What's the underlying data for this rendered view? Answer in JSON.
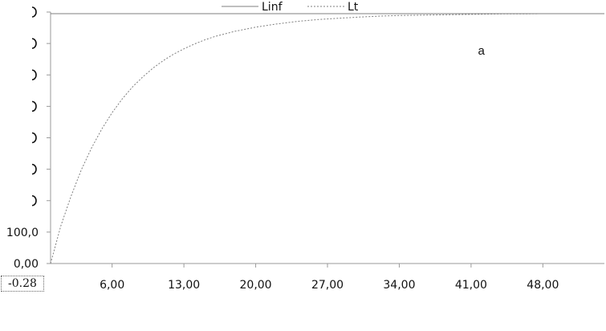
{
  "chart_data": {
    "type": "line",
    "title": "",
    "xlabel": "",
    "ylabel": "",
    "xlim": [
      0,
      54
    ],
    "ylim": [
      0,
      800
    ],
    "x_ticks": [
      6,
      13,
      20,
      27,
      34,
      41,
      48
    ],
    "x_tick_labels": [
      "6,00",
      "13,00",
      "20,00",
      "27,00",
      "34,00",
      "41,00",
      "48,00"
    ],
    "y_ticks": [
      0,
      100,
      200,
      300,
      400,
      500,
      600,
      700,
      800
    ],
    "y_tick_labels": [
      "0,00",
      "100,0",
      "",
      "",
      "",
      "",
      "",
      "",
      ""
    ],
    "grid": false,
    "legend_position": "top-center",
    "series": [
      {
        "name": "Linf",
        "style": "solid",
        "color": "#7f7f7f",
        "x": [
          0,
          54
        ],
        "y": [
          795,
          795
        ]
      },
      {
        "name": "Lt",
        "style": "dotted",
        "color": "#7f7f7f",
        "x": [
          0,
          1,
          2,
          3,
          4,
          5,
          6,
          7,
          8,
          9,
          10,
          11,
          12,
          13,
          14,
          15,
          16,
          18,
          20,
          22,
          24,
          26,
          28,
          30,
          32,
          34,
          36,
          38,
          40,
          42,
          44,
          46,
          48,
          50,
          52,
          54
        ],
        "y": [
          0,
          120,
          215,
          298,
          368,
          428,
          480,
          524,
          562,
          594,
          622,
          646,
          666,
          683,
          698,
          711,
          722,
          739,
          752,
          762,
          770,
          776,
          780,
          784,
          787,
          789,
          790,
          791,
          792,
          793,
          794,
          794,
          795,
          795,
          795,
          795
        ]
      }
    ],
    "annotations": [
      {
        "text": "a",
        "x": 42,
        "y": 665
      }
    ],
    "x_readout": "-0.28"
  }
}
